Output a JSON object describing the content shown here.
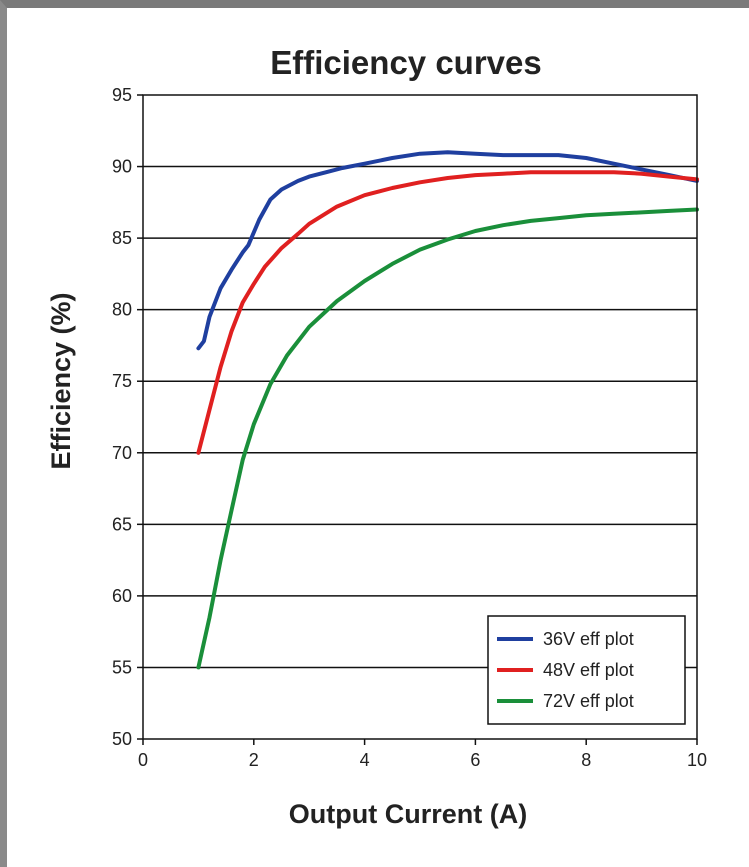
{
  "chart_data": {
    "type": "line",
    "title": "Efficiency curves",
    "xlabel": "Output Current (A)",
    "ylabel": "Efficiency (%)",
    "xlim": [
      0,
      10
    ],
    "ylim": [
      50,
      95
    ],
    "x_ticks": [
      "0",
      "2",
      "4",
      "6",
      "8",
      "10"
    ],
    "y_ticks": [
      "50",
      "55",
      "60",
      "65",
      "70",
      "75",
      "80",
      "85",
      "90",
      "95"
    ],
    "grid": "horizontal",
    "legend_position": "bottom-right",
    "series": [
      {
        "name": "36V eff plot",
        "color": "#1f3f9f",
        "x": [
          1.0,
          1.1,
          1.2,
          1.4,
          1.6,
          1.8,
          1.9,
          2.1,
          2.3,
          2.5,
          2.8,
          3.0,
          3.3,
          3.6,
          4.0,
          4.5,
          5.0,
          5.5,
          6.0,
          6.5,
          7.0,
          7.5,
          8.0,
          8.5,
          9.0,
          9.5,
          10.0
        ],
        "y": [
          77.3,
          77.8,
          79.5,
          81.5,
          82.8,
          84.0,
          84.5,
          86.3,
          87.7,
          88.4,
          89.0,
          89.3,
          89.6,
          89.9,
          90.2,
          90.6,
          90.9,
          91.0,
          90.9,
          90.8,
          90.8,
          90.8,
          90.6,
          90.2,
          89.8,
          89.4,
          89.0
        ]
      },
      {
        "name": "48V eff plot",
        "color": "#e02020",
        "x": [
          1.0,
          1.2,
          1.4,
          1.6,
          1.8,
          2.0,
          2.2,
          2.5,
          2.8,
          3.0,
          3.5,
          4.0,
          4.5,
          5.0,
          5.5,
          6.0,
          6.5,
          7.0,
          7.5,
          8.0,
          8.5,
          9.0,
          9.5,
          10.0
        ],
        "y": [
          70.0,
          73.0,
          76.0,
          78.5,
          80.5,
          81.8,
          83.0,
          84.3,
          85.3,
          86.0,
          87.2,
          88.0,
          88.5,
          88.9,
          89.2,
          89.4,
          89.5,
          89.6,
          89.6,
          89.6,
          89.6,
          89.5,
          89.3,
          89.1
        ]
      },
      {
        "name": "72V eff plot",
        "color": "#1a8f3a",
        "x": [
          1.0,
          1.2,
          1.4,
          1.6,
          1.8,
          2.0,
          2.3,
          2.6,
          3.0,
          3.5,
          4.0,
          4.5,
          5.0,
          5.5,
          6.0,
          6.5,
          7.0,
          7.5,
          8.0,
          8.5,
          9.0,
          9.5,
          10.0
        ],
        "y": [
          55.0,
          58.5,
          62.5,
          66.0,
          69.5,
          72.0,
          74.8,
          76.8,
          78.8,
          80.6,
          82.0,
          83.2,
          84.2,
          84.9,
          85.5,
          85.9,
          86.2,
          86.4,
          86.6,
          86.7,
          86.8,
          86.9,
          87.0
        ]
      }
    ]
  }
}
